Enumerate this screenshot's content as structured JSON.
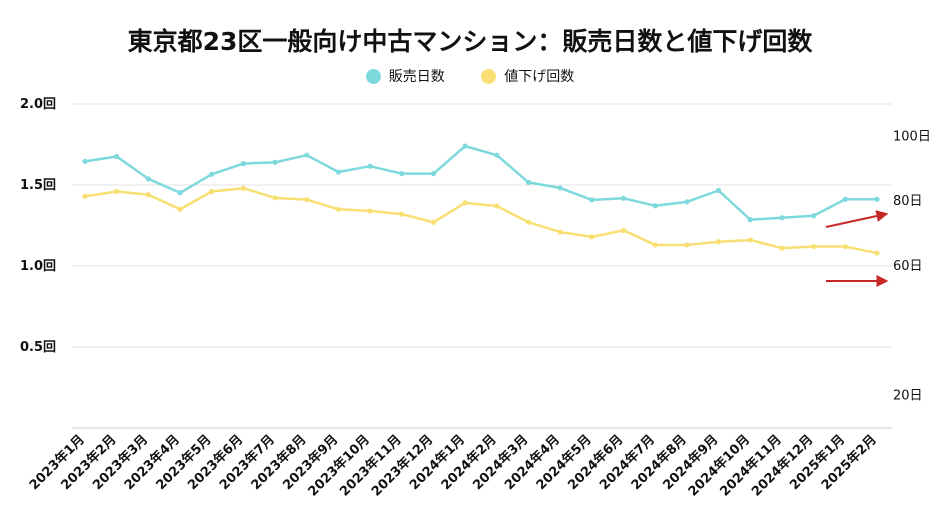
{
  "chart_data": {
    "type": "line",
    "title": "東京都23区一般向け中古マンション：販売日数と値下げ回数",
    "categories": [
      "2023年1月",
      "2023年2月",
      "2023年3月",
      "2023年4月",
      "2023年5月",
      "2023年6月",
      "2023年7月",
      "2023年8月",
      "2023年9月",
      "2023年10月",
      "2023年11月",
      "2023年12月",
      "2024年1月",
      "2024年2月",
      "2024年3月",
      "2024年4月",
      "2024年5月",
      "2024年6月",
      "2024年7月",
      "2024年8月",
      "2024年9月",
      "2024年10月",
      "2024年11月",
      "2024年12月",
      "2025年1月",
      "2025年2月"
    ],
    "series": [
      {
        "name": "販売日数",
        "axis": "right",
        "color": "#7dd9dc",
        "values": [
          92.3,
          93.8,
          86.9,
          82.6,
          88.3,
          91.6,
          92.0,
          94.2,
          89.0,
          90.8,
          88.5,
          88.5,
          97.0,
          94.2,
          85.8,
          84.1,
          80.4,
          80.9,
          78.6,
          79.8,
          83.3,
          74.3,
          74.9,
          75.5,
          80.6,
          80.6
        ]
      },
      {
        "name": "値下げ回数",
        "axis": "left",
        "color": "#f8df73",
        "values": [
          1.43,
          1.46,
          1.44,
          1.35,
          1.46,
          1.48,
          1.42,
          1.41,
          1.35,
          1.34,
          1.32,
          1.27,
          1.39,
          1.37,
          1.27,
          1.21,
          1.18,
          1.22,
          1.13,
          1.13,
          1.15,
          1.16,
          1.11,
          1.12,
          1.12,
          1.08
        ]
      }
    ],
    "y_left": {
      "ticks": [
        "2.0回",
        "1.5回",
        "1.0回",
        "0.5回"
      ],
      "tick_values": [
        2.0,
        1.5,
        1.0,
        0.5
      ],
      "ylim": [
        0,
        2.0
      ]
    },
    "y_right": {
      "ticks": [
        "100日",
        "80日",
        "60日",
        "20日"
      ],
      "tick_values": [
        100,
        80,
        60,
        20
      ],
      "ylim": [
        10,
        110
      ]
    },
    "annotations": [
      {
        "type": "arrow",
        "color": "#c62828",
        "description": "rising trend arrow near 販売日数 end"
      },
      {
        "type": "arrow",
        "color": "#c62828",
        "description": "flat trend arrow near 値下げ回数 end"
      }
    ],
    "grid": true,
    "legend_position": "top-center"
  }
}
